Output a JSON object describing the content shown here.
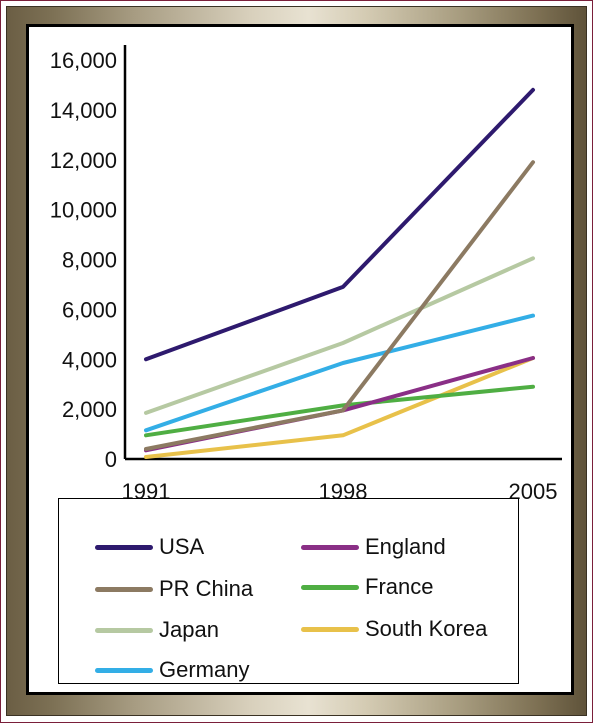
{
  "chart_data": {
    "type": "line",
    "title": "",
    "xlabel": "",
    "ylabel": "",
    "x": [
      "1991",
      "1998",
      "2005"
    ],
    "ylim": [
      0,
      16000
    ],
    "yticks": [
      0,
      2000,
      4000,
      6000,
      8000,
      10000,
      12000,
      14000,
      16000
    ],
    "ytick_labels": [
      "0",
      "2,000",
      "4,000",
      "6,000",
      "8,000",
      "10,000",
      "12,000",
      "14,000",
      "16,000"
    ],
    "legend_placement": "bottom",
    "grid": false,
    "series": [
      {
        "name": "USA",
        "color": "#2e1a6e",
        "values": [
          4000,
          6900,
          14800
        ]
      },
      {
        "name": "PR China",
        "color": "#8c7a62",
        "values": [
          400,
          1950,
          11900
        ]
      },
      {
        "name": "Japan",
        "color": "#b6c9a2",
        "values": [
          1850,
          4650,
          8050
        ]
      },
      {
        "name": "Germany",
        "color": "#33aee6",
        "values": [
          1150,
          3850,
          5750
        ]
      },
      {
        "name": "England",
        "color": "#8a2f86",
        "values": [
          350,
          1950,
          4050
        ]
      },
      {
        "name": "France",
        "color": "#4fae43",
        "values": [
          950,
          2150,
          2900
        ]
      },
      {
        "name": "South Korea",
        "color": "#e8c14a",
        "values": [
          80,
          950,
          4050
        ]
      }
    ]
  },
  "legend": {
    "items": [
      {
        "label": "USA",
        "color": "#2e1a6e"
      },
      {
        "label": "England",
        "color": "#8a2f86"
      },
      {
        "label": "PR China",
        "color": "#8c7a62"
      },
      {
        "label": "France",
        "color": "#4fae43"
      },
      {
        "label": "Japan",
        "color": "#b6c9a2"
      },
      {
        "label": "South Korea",
        "color": "#e8c14a"
      },
      {
        "label": "Germany",
        "color": "#33aee6"
      }
    ]
  }
}
